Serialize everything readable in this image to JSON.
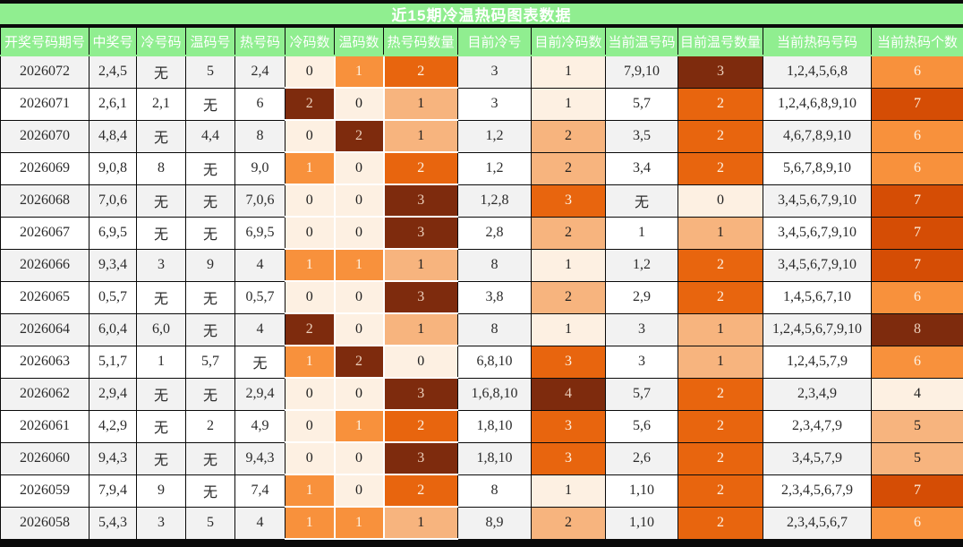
{
  "title": "近15期冷温热码图表数据",
  "theme": {
    "title_bar_bg": "#90ee90",
    "title_text": "#ffffff",
    "header_bg": "#90ee90",
    "header_text": "#ffffff",
    "border_dark": "#0a0a0a",
    "row_stripe": "#f2f2f2",
    "row_plain": "#ffffff",
    "top_bottom_bar": "#0a0a0a"
  },
  "palette": {
    "l0": {
      "bg": "#fdf0e2",
      "fg": "#1f1f1f"
    },
    "l1": {
      "bg": "#f7b47e",
      "fg": "#1f1f1f"
    },
    "l2": {
      "bg": "#f8913c",
      "fg": "#fdf2e3"
    },
    "l3": {
      "bg": "#e8650e",
      "fg": "#fdf2e3"
    },
    "l4": {
      "bg": "#d54d05",
      "fg": "#fdf2e3"
    },
    "l5": {
      "bg": "#7e2b0d",
      "fg": "#ecd0bc"
    }
  },
  "chart_data": {
    "type": "heatmap",
    "title": "近15期冷温热码图表数据",
    "legend_position": "none",
    "grid": true,
    "columns": [
      {
        "label": "开奖号码期号",
        "key": "period",
        "type": "text"
      },
      {
        "label": "中奖号",
        "key": "win",
        "type": "text"
      },
      {
        "label": "冷号码",
        "key": "cold",
        "type": "text"
      },
      {
        "label": "温码号",
        "key": "warm",
        "type": "text"
      },
      {
        "label": "热号码",
        "key": "hot",
        "type": "text"
      },
      {
        "label": "冷码数",
        "key": "cold_n",
        "type": "heat",
        "wb": "first"
      },
      {
        "label": "温码数",
        "key": "warm_n",
        "type": "heat",
        "wb": "mid"
      },
      {
        "label": "热号码数量",
        "key": "hot_n",
        "type": "heat",
        "wb": "last"
      },
      {
        "label": "目前冷号",
        "key": "cur_cold",
        "type": "text"
      },
      {
        "label": "目前冷码数",
        "key": "cur_cold_n",
        "type": "heat"
      },
      {
        "label": "当前温号码",
        "key": "cur_warm",
        "type": "text"
      },
      {
        "label": "目前温号数量",
        "key": "cur_warm_n",
        "type": "heat"
      },
      {
        "label": "当前热码号码",
        "key": "cur_hot",
        "type": "text"
      },
      {
        "label": "当前热码个数",
        "key": "cur_hot_n",
        "type": "heat"
      }
    ],
    "rows": [
      {
        "period": "2026072",
        "win": "2,4,5",
        "cold": "无",
        "warm": "5",
        "hot": "2,4",
        "cold_n": {
          "v": "0",
          "lvl": "l0"
        },
        "warm_n": {
          "v": "1",
          "lvl": "l2"
        },
        "hot_n": {
          "v": "2",
          "lvl": "l3"
        },
        "cur_cold": "3",
        "cur_cold_n": {
          "v": "1",
          "lvl": "l0"
        },
        "cur_warm": "7,9,10",
        "cur_warm_n": {
          "v": "3",
          "lvl": "l5"
        },
        "cur_hot": "1,2,4,5,6,8",
        "cur_hot_n": {
          "v": "6",
          "lvl": "l2"
        }
      },
      {
        "period": "2026071",
        "win": "2,6,1",
        "cold": "2,1",
        "warm": "无",
        "hot": "6",
        "cold_n": {
          "v": "2",
          "lvl": "l5"
        },
        "warm_n": {
          "v": "0",
          "lvl": "l0"
        },
        "hot_n": {
          "v": "1",
          "lvl": "l1"
        },
        "cur_cold": "3",
        "cur_cold_n": {
          "v": "1",
          "lvl": "l0"
        },
        "cur_warm": "5,7",
        "cur_warm_n": {
          "v": "2",
          "lvl": "l3"
        },
        "cur_hot": "1,2,4,6,8,9,10",
        "cur_hot_n": {
          "v": "7",
          "lvl": "l4"
        }
      },
      {
        "period": "2026070",
        "win": "4,8,4",
        "cold": "无",
        "warm": "4,4",
        "hot": "8",
        "cold_n": {
          "v": "0",
          "lvl": "l0"
        },
        "warm_n": {
          "v": "2",
          "lvl": "l5"
        },
        "hot_n": {
          "v": "1",
          "lvl": "l1"
        },
        "cur_cold": "1,2",
        "cur_cold_n": {
          "v": "2",
          "lvl": "l1"
        },
        "cur_warm": "3,5",
        "cur_warm_n": {
          "v": "2",
          "lvl": "l3"
        },
        "cur_hot": "4,6,7,8,9,10",
        "cur_hot_n": {
          "v": "6",
          "lvl": "l2"
        }
      },
      {
        "period": "2026069",
        "win": "9,0,8",
        "cold": "8",
        "warm": "无",
        "hot": "9,0",
        "cold_n": {
          "v": "1",
          "lvl": "l2"
        },
        "warm_n": {
          "v": "0",
          "lvl": "l0"
        },
        "hot_n": {
          "v": "2",
          "lvl": "l3"
        },
        "cur_cold": "1,2",
        "cur_cold_n": {
          "v": "2",
          "lvl": "l1"
        },
        "cur_warm": "3,4",
        "cur_warm_n": {
          "v": "2",
          "lvl": "l3"
        },
        "cur_hot": "5,6,7,8,9,10",
        "cur_hot_n": {
          "v": "6",
          "lvl": "l2"
        }
      },
      {
        "period": "2026068",
        "win": "7,0,6",
        "cold": "无",
        "warm": "无",
        "hot": "7,0,6",
        "cold_n": {
          "v": "0",
          "lvl": "l0"
        },
        "warm_n": {
          "v": "0",
          "lvl": "l0"
        },
        "hot_n": {
          "v": "3",
          "lvl": "l5"
        },
        "cur_cold": "1,2,8",
        "cur_cold_n": {
          "v": "3",
          "lvl": "l3"
        },
        "cur_warm": "无",
        "cur_warm_n": {
          "v": "0",
          "lvl": "l0"
        },
        "cur_hot": "3,4,5,6,7,9,10",
        "cur_hot_n": {
          "v": "7",
          "lvl": "l4"
        }
      },
      {
        "period": "2026067",
        "win": "6,9,5",
        "cold": "无",
        "warm": "无",
        "hot": "6,9,5",
        "cold_n": {
          "v": "0",
          "lvl": "l0"
        },
        "warm_n": {
          "v": "0",
          "lvl": "l0"
        },
        "hot_n": {
          "v": "3",
          "lvl": "l5"
        },
        "cur_cold": "2,8",
        "cur_cold_n": {
          "v": "2",
          "lvl": "l1"
        },
        "cur_warm": "1",
        "cur_warm_n": {
          "v": "1",
          "lvl": "l1"
        },
        "cur_hot": "3,4,5,6,7,9,10",
        "cur_hot_n": {
          "v": "7",
          "lvl": "l4"
        }
      },
      {
        "period": "2026066",
        "win": "9,3,4",
        "cold": "3",
        "warm": "9",
        "hot": "4",
        "cold_n": {
          "v": "1",
          "lvl": "l2"
        },
        "warm_n": {
          "v": "1",
          "lvl": "l2"
        },
        "hot_n": {
          "v": "1",
          "lvl": "l1"
        },
        "cur_cold": "8",
        "cur_cold_n": {
          "v": "1",
          "lvl": "l0"
        },
        "cur_warm": "1,2",
        "cur_warm_n": {
          "v": "2",
          "lvl": "l3"
        },
        "cur_hot": "3,4,5,6,7,9,10",
        "cur_hot_n": {
          "v": "7",
          "lvl": "l4"
        }
      },
      {
        "period": "2026065",
        "win": "0,5,7",
        "cold": "无",
        "warm": "无",
        "hot": "0,5,7",
        "cold_n": {
          "v": "0",
          "lvl": "l0"
        },
        "warm_n": {
          "v": "0",
          "lvl": "l0"
        },
        "hot_n": {
          "v": "3",
          "lvl": "l5"
        },
        "cur_cold": "3,8",
        "cur_cold_n": {
          "v": "2",
          "lvl": "l1"
        },
        "cur_warm": "2,9",
        "cur_warm_n": {
          "v": "2",
          "lvl": "l3"
        },
        "cur_hot": "1,4,5,6,7,10",
        "cur_hot_n": {
          "v": "6",
          "lvl": "l2"
        }
      },
      {
        "period": "2026064",
        "win": "6,0,4",
        "cold": "6,0",
        "warm": "无",
        "hot": "4",
        "cold_n": {
          "v": "2",
          "lvl": "l5"
        },
        "warm_n": {
          "v": "0",
          "lvl": "l0"
        },
        "hot_n": {
          "v": "1",
          "lvl": "l1"
        },
        "cur_cold": "8",
        "cur_cold_n": {
          "v": "1",
          "lvl": "l0"
        },
        "cur_warm": "3",
        "cur_warm_n": {
          "v": "1",
          "lvl": "l1"
        },
        "cur_hot": "1,2,4,5,6,7,9,10",
        "cur_hot_n": {
          "v": "8",
          "lvl": "l5"
        }
      },
      {
        "period": "2026063",
        "win": "5,1,7",
        "cold": "1",
        "warm": "5,7",
        "hot": "无",
        "cold_n": {
          "v": "1",
          "lvl": "l2"
        },
        "warm_n": {
          "v": "2",
          "lvl": "l5"
        },
        "hot_n": {
          "v": "0",
          "lvl": "l0"
        },
        "cur_cold": "6,8,10",
        "cur_cold_n": {
          "v": "3",
          "lvl": "l3"
        },
        "cur_warm": "3",
        "cur_warm_n": {
          "v": "1",
          "lvl": "l1"
        },
        "cur_hot": "1,2,4,5,7,9",
        "cur_hot_n": {
          "v": "6",
          "lvl": "l2"
        }
      },
      {
        "period": "2026062",
        "win": "2,9,4",
        "cold": "无",
        "warm": "无",
        "hot": "2,9,4",
        "cold_n": {
          "v": "0",
          "lvl": "l0"
        },
        "warm_n": {
          "v": "0",
          "lvl": "l0"
        },
        "hot_n": {
          "v": "3",
          "lvl": "l5"
        },
        "cur_cold": "1,6,8,10",
        "cur_cold_n": {
          "v": "4",
          "lvl": "l5"
        },
        "cur_warm": "5,7",
        "cur_warm_n": {
          "v": "2",
          "lvl": "l3"
        },
        "cur_hot": "2,3,4,9",
        "cur_hot_n": {
          "v": "4",
          "lvl": "l0"
        }
      },
      {
        "period": "2026061",
        "win": "4,2,9",
        "cold": "无",
        "warm": "2",
        "hot": "4,9",
        "cold_n": {
          "v": "0",
          "lvl": "l0"
        },
        "warm_n": {
          "v": "1",
          "lvl": "l2"
        },
        "hot_n": {
          "v": "2",
          "lvl": "l3"
        },
        "cur_cold": "1,8,10",
        "cur_cold_n": {
          "v": "3",
          "lvl": "l3"
        },
        "cur_warm": "5,6",
        "cur_warm_n": {
          "v": "2",
          "lvl": "l3"
        },
        "cur_hot": "2,3,4,7,9",
        "cur_hot_n": {
          "v": "5",
          "lvl": "l1"
        }
      },
      {
        "period": "2026060",
        "win": "9,4,3",
        "cold": "无",
        "warm": "无",
        "hot": "9,4,3",
        "cold_n": {
          "v": "0",
          "lvl": "l0"
        },
        "warm_n": {
          "v": "0",
          "lvl": "l0"
        },
        "hot_n": {
          "v": "3",
          "lvl": "l5"
        },
        "cur_cold": "1,8,10",
        "cur_cold_n": {
          "v": "3",
          "lvl": "l3"
        },
        "cur_warm": "2,6",
        "cur_warm_n": {
          "v": "2",
          "lvl": "l3"
        },
        "cur_hot": "3,4,5,7,9",
        "cur_hot_n": {
          "v": "5",
          "lvl": "l1"
        }
      },
      {
        "period": "2026059",
        "win": "7,9,4",
        "cold": "9",
        "warm": "无",
        "hot": "7,4",
        "cold_n": {
          "v": "1",
          "lvl": "l2"
        },
        "warm_n": {
          "v": "0",
          "lvl": "l0"
        },
        "hot_n": {
          "v": "2",
          "lvl": "l3"
        },
        "cur_cold": "8",
        "cur_cold_n": {
          "v": "1",
          "lvl": "l0"
        },
        "cur_warm": "1,10",
        "cur_warm_n": {
          "v": "2",
          "lvl": "l3"
        },
        "cur_hot": "2,3,4,5,6,7,9",
        "cur_hot_n": {
          "v": "7",
          "lvl": "l4"
        }
      },
      {
        "period": "2026058",
        "win": "5,4,3",
        "cold": "3",
        "warm": "5",
        "hot": "4",
        "cold_n": {
          "v": "1",
          "lvl": "l2"
        },
        "warm_n": {
          "v": "1",
          "lvl": "l2"
        },
        "hot_n": {
          "v": "1",
          "lvl": "l1"
        },
        "cur_cold": "8,9",
        "cur_cold_n": {
          "v": "2",
          "lvl": "l1"
        },
        "cur_warm": "1,10",
        "cur_warm_n": {
          "v": "2",
          "lvl": "l3"
        },
        "cur_hot": "2,3,4,5,6,7",
        "cur_hot_n": {
          "v": "6",
          "lvl": "l2"
        }
      }
    ]
  }
}
